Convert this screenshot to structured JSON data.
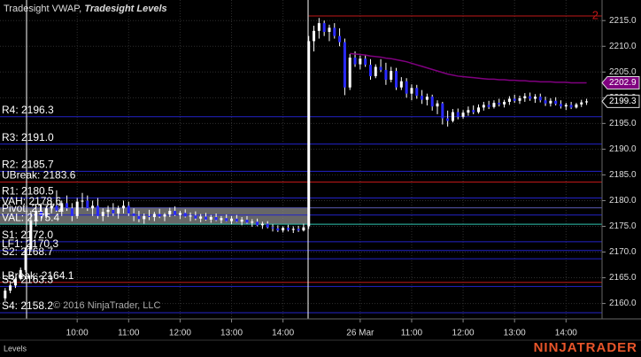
{
  "chart_data": {
    "type": "candlestick",
    "title": "Tradesight VWAP,",
    "subtitle": "Tradesight Levels",
    "panel_label": "Levels",
    "copyright": "© 2016 NinjaTrader, LLC",
    "brand": "NINJATRADER",
    "xlim": [
      -1,
      116
    ],
    "ylim": [
      2157,
      2219
    ],
    "xticks": [
      {
        "value": 14,
        "label": "10:00"
      },
      {
        "value": 24,
        "label": "11:00"
      },
      {
        "value": 34,
        "label": "12:00"
      },
      {
        "value": 44,
        "label": "13:00"
      },
      {
        "value": 54,
        "label": "14:00"
      },
      {
        "value": 69,
        "label": "26 Mar"
      },
      {
        "value": 79,
        "label": "11:00"
      },
      {
        "value": 89,
        "label": "12:00"
      },
      {
        "value": 99,
        "label": "13:00"
      },
      {
        "value": 109,
        "label": "14:00"
      }
    ],
    "yticks": [
      {
        "value": 2160,
        "label": "2160.0"
      },
      {
        "value": 2165,
        "label": "2165.0"
      },
      {
        "value": 2170,
        "label": "2170.0"
      },
      {
        "value": 2175,
        "label": "2175.0"
      },
      {
        "value": 2180,
        "label": "2180.0"
      },
      {
        "value": 2185,
        "label": "2185.0"
      },
      {
        "value": 2190,
        "label": "2190.0"
      },
      {
        "value": 2195,
        "label": "2195.0"
      },
      {
        "value": 2200,
        "label": "2200.0"
      },
      {
        "value": 2205,
        "label": "2205.0"
      },
      {
        "value": 2210,
        "label": "2210.0"
      },
      {
        "value": 2215,
        "label": "2215.0"
      }
    ],
    "grid": true,
    "up_color": "#ffffff",
    "down_color": "#2a2aff",
    "wick_color": "#ffffff",
    "candles": [
      [
        2161,
        2163,
        2160.5,
        2162.5
      ],
      [
        2162.5,
        2164,
        2162,
        2163.5
      ],
      [
        2163.5,
        2165,
        2163,
        2164.8
      ],
      [
        2164.8,
        2167,
        2164.5,
        2166.5
      ],
      [
        2166.5,
        2171,
        2166,
        2170.5
      ],
      [
        2170.5,
        2178,
        2170,
        2176
      ],
      [
        2176,
        2179,
        2175,
        2178
      ],
      [
        2178,
        2179.5,
        2176.5,
        2177
      ],
      [
        2177,
        2179,
        2176.5,
        2178.5
      ],
      [
        2178.5,
        2180,
        2177.5,
        2179
      ],
      [
        2179,
        2182,
        2178.5,
        2178
      ],
      [
        2178,
        2180,
        2177,
        2179.5
      ],
      [
        2179.5,
        2181,
        2178,
        2178.5
      ],
      [
        2178.5,
        2179.5,
        2176,
        2177
      ],
      [
        2177,
        2180.5,
        2176.5,
        2179.8
      ],
      [
        2179.8,
        2181.5,
        2178.5,
        2180
      ],
      [
        2180,
        2181,
        2178,
        2178.5
      ],
      [
        2178.5,
        2180,
        2177,
        2179
      ],
      [
        2179,
        2180.5,
        2176.5,
        2177
      ],
      [
        2177,
        2178.5,
        2176,
        2177.8
      ],
      [
        2177.8,
        2179,
        2176.8,
        2178.2
      ],
      [
        2178.2,
        2179.5,
        2177,
        2177.5
      ],
      [
        2177.5,
        2179,
        2176.5,
        2178.5
      ],
      [
        2178.5,
        2180,
        2177.5,
        2179
      ],
      [
        2179,
        2179.8,
        2177,
        2177.5
      ],
      [
        2177.5,
        2178.5,
        2176,
        2177
      ],
      [
        2177,
        2178,
        2175.8,
        2176.4
      ],
      [
        2176.4,
        2177.5,
        2175.5,
        2177
      ],
      [
        2177,
        2178.2,
        2176.2,
        2176.8
      ],
      [
        2176.8,
        2177.8,
        2176,
        2177.4
      ],
      [
        2177.4,
        2178.4,
        2176.6,
        2176.9
      ],
      [
        2176.9,
        2177.6,
        2176,
        2177.3
      ],
      [
        2177.3,
        2178.6,
        2176.8,
        2178
      ],
      [
        2178,
        2178.9,
        2177,
        2177.2
      ],
      [
        2177.2,
        2178,
        2176.4,
        2177.6
      ],
      [
        2177.6,
        2178.3,
        2176.7,
        2176.9
      ],
      [
        2176.9,
        2177.7,
        2176,
        2177.1
      ],
      [
        2177.1,
        2177.9,
        2176.2,
        2176.5
      ],
      [
        2176.5,
        2177.4,
        2175.8,
        2176.9
      ],
      [
        2176.9,
        2177.6,
        2176.1,
        2176.3
      ],
      [
        2176.3,
        2177.2,
        2175.7,
        2176.8
      ],
      [
        2176.8,
        2177.5,
        2176,
        2176.2
      ],
      [
        2176.2,
        2177,
        2175.6,
        2176.6
      ],
      [
        2176.6,
        2177.3,
        2175.9,
        2176
      ],
      [
        2176,
        2177,
        2175.4,
        2176.5
      ],
      [
        2176.5,
        2177.2,
        2175.8,
        2175.9
      ],
      [
        2175.9,
        2176.8,
        2175.2,
        2176.3
      ],
      [
        2176.3,
        2177,
        2175.5,
        2175.7
      ],
      [
        2175.7,
        2176.4,
        2174.9,
        2175.9
      ],
      [
        2175.9,
        2176.5,
        2175,
        2175.2
      ],
      [
        2175.2,
        2175.9,
        2174.5,
        2175.5
      ],
      [
        2175.5,
        2176,
        2174.6,
        2174.8
      ],
      [
        2174.8,
        2175.4,
        2174,
        2174.6
      ],
      [
        2174.6,
        2175.2,
        2173.9,
        2174.2
      ],
      [
        2174.2,
        2175,
        2173.8,
        2174.7
      ],
      [
        2174.7,
        2175.3,
        2174,
        2174.3
      ],
      [
        2174.3,
        2175,
        2173.7,
        2174.5
      ],
      [
        2174.5,
        2175.1,
        2173.9,
        2174.2
      ],
      [
        2174.2,
        2175.5,
        2174,
        2174.8
      ],
      [
        2175,
        2212,
        2174.5,
        2211
      ],
      [
        2211,
        2214,
        2209,
        2213
      ],
      [
        2213,
        2215.5,
        2211.5,
        2214.5
      ],
      [
        2214.5,
        2215,
        2212,
        2212.8
      ],
      [
        2212.8,
        2214.2,
        2211,
        2213.6
      ],
      [
        2213.6,
        2214.5,
        2211.5,
        2212
      ],
      [
        2212,
        2213.5,
        2210,
        2210.8
      ],
      [
        2210.8,
        2211.5,
        2200.5,
        2202
      ],
      [
        2202,
        2208.5,
        2201.5,
        2207.8
      ],
      [
        2207.8,
        2209,
        2206,
        2206.5
      ],
      [
        2206.5,
        2208.2,
        2205.5,
        2207.6
      ],
      [
        2207.6,
        2208.4,
        2206,
        2206.4
      ],
      [
        2206.4,
        2207.5,
        2203.5,
        2204.2
      ],
      [
        2204.2,
        2206.5,
        2203.8,
        2206
      ],
      [
        2206,
        2207.5,
        2205,
        2205.4
      ],
      [
        2205.4,
        2206.8,
        2202.5,
        2203.5
      ],
      [
        2203.5,
        2206,
        2203,
        2205.2
      ],
      [
        2205.2,
        2205.8,
        2201.5,
        2202
      ],
      [
        2202,
        2204,
        2201.5,
        2203.2
      ],
      [
        2203.2,
        2203.8,
        2200,
        2200.8
      ],
      [
        2200.8,
        2202.6,
        2199.5,
        2201.9
      ],
      [
        2201.9,
        2202.5,
        2199.8,
        2200.4
      ],
      [
        2200.4,
        2201.5,
        2198.8,
        2199.6
      ],
      [
        2199.6,
        2200.8,
        2198.5,
        2200.2
      ],
      [
        2200.2,
        2200.6,
        2197.5,
        2198.3
      ],
      [
        2198.3,
        2199.5,
        2196.8,
        2198.9
      ],
      [
        2198.9,
        2199.2,
        2194.8,
        2196
      ],
      [
        2196,
        2197.5,
        2194.4,
        2195.5
      ],
      [
        2195.5,
        2197.8,
        2195.2,
        2197.2
      ],
      [
        2197.2,
        2197.9,
        2195.8,
        2196.3
      ],
      [
        2196.3,
        2197.6,
        2195.9,
        2197.1
      ],
      [
        2197.1,
        2198.3,
        2196.5,
        2197.6
      ],
      [
        2197.6,
        2198.5,
        2196.8,
        2197.2
      ],
      [
        2197.2,
        2198.7,
        2196.9,
        2198.1
      ],
      [
        2198.1,
        2199.2,
        2197.5,
        2198.6
      ],
      [
        2198.6,
        2199.4,
        2197.8,
        2198.2
      ],
      [
        2198.2,
        2199.5,
        2197.9,
        2199
      ],
      [
        2199,
        2199.8,
        2198.3,
        2198.7
      ],
      [
        2198.7,
        2199.6,
        2198.1,
        2199.2
      ],
      [
        2199.2,
        2200.3,
        2198.6,
        2199.8
      ],
      [
        2199.8,
        2200.6,
        2199,
        2199.4
      ],
      [
        2199.4,
        2200.4,
        2198.8,
        2199.9
      ],
      [
        2199.9,
        2200.9,
        2199.2,
        2200.3
      ],
      [
        2200.3,
        2201,
        2199.4,
        2199.8
      ],
      [
        2199.8,
        2200.7,
        2199,
        2200.2
      ],
      [
        2200.2,
        2200.8,
        2199.1,
        2199.5
      ],
      [
        2199.5,
        2200.2,
        2198.4,
        2198.9
      ],
      [
        2198.9,
        2199.9,
        2198.3,
        2199.4
      ],
      [
        2199.4,
        2200.1,
        2198.5,
        2198.8
      ],
      [
        2198.8,
        2199.5,
        2197.9,
        2198.3
      ],
      [
        2198.3,
        2199,
        2197.6,
        2198.6
      ],
      [
        2198.6,
        2199.2,
        2197.8,
        2198.1
      ],
      [
        2198.1,
        2199,
        2197.9,
        2198.7
      ],
      [
        2198.7,
        2199.6,
        2198.2,
        2199.1
      ],
      [
        2199.1,
        2199.8,
        2198.6,
        2199.3
      ]
    ],
    "vwap": {
      "color": "#800080",
      "values": [
        null,
        null,
        null,
        null,
        null,
        null,
        null,
        null,
        null,
        null,
        null,
        null,
        null,
        null,
        null,
        null,
        null,
        null,
        null,
        null,
        null,
        null,
        null,
        null,
        null,
        null,
        null,
        null,
        null,
        null,
        null,
        null,
        null,
        null,
        null,
        null,
        null,
        null,
        null,
        null,
        null,
        null,
        null,
        null,
        null,
        null,
        null,
        null,
        null,
        null,
        null,
        null,
        null,
        null,
        null,
        null,
        null,
        null,
        null,
        null,
        null,
        null,
        null,
        null,
        null,
        null,
        null,
        2208.6,
        2208.5,
        2208.4,
        2208.3,
        2208.1,
        2208,
        2207.9,
        2207.7,
        2207.6,
        2207.4,
        2207.2,
        2207,
        2206.7,
        2206.4,
        2206.1,
        2205.8,
        2205.5,
        2205.2,
        2204.9,
        2204.6,
        2204.4,
        2204.2,
        2204.1,
        2204,
        2203.9,
        2203.8,
        2203.7,
        2203.6,
        2203.6,
        2203.5,
        2203.5,
        2203.4,
        2203.4,
        2203.3,
        2203.3,
        2203.2,
        2203.2,
        2203.1,
        2203.1,
        2203.1,
        2203,
        2203,
        2203,
        2202.9,
        2202.9,
        2202.9,
        2202.9
      ]
    },
    "value_area": {
      "high": 2178.6,
      "low": 2175.4,
      "color": "#8a8a8a"
    },
    "levels": [
      {
        "label": "2",
        "value": 2215.9,
        "color": "#c01818",
        "from": 59,
        "label_side": "right"
      },
      {
        "label": "R4: 2196.3",
        "value": 2196.3,
        "color": "#2323c8"
      },
      {
        "label": "R3: 2191.0",
        "value": 2191.0,
        "color": "#2323c8"
      },
      {
        "label": "R2: 2185.7",
        "value": 2185.7,
        "color": "#2323c8"
      },
      {
        "label": "UBreak: 2183.6",
        "value": 2183.6,
        "color": "#c01818"
      },
      {
        "label": "R1: 2180.5",
        "value": 2180.5,
        "color": "#2323c8"
      },
      {
        "label": "VAH: 2178.6",
        "value": 2178.6,
        "color": "#5a5ab0"
      },
      {
        "label": "Pivot: 2177.2",
        "value": 2177.2,
        "color": "#2323c8"
      },
      {
        "label": "VAL: 2175.4",
        "value": 2175.4,
        "color": "#2fc4b0"
      },
      {
        "label": "S1: 2172.0",
        "value": 2172.0,
        "color": "#2323c8"
      },
      {
        "label": "LF1: 2170.3",
        "value": 2170.3,
        "color": "#2323c8"
      },
      {
        "label": "S2: 2168.7",
        "value": 2168.7,
        "color": "#2323c8"
      },
      {
        "label": "LBreak: 2164.1",
        "value": 2164.1,
        "color": "#c01818"
      },
      {
        "label": "S3: 2163.3",
        "value": 2163.3,
        "color": "#2323c8"
      },
      {
        "label": "S4: 2158.2",
        "value": 2158.2,
        "color": "#2323c8"
      }
    ],
    "price_markers": [
      {
        "value": 2202.9,
        "color": "#800080"
      },
      {
        "value": 2199.3,
        "color": "#000000"
      }
    ]
  }
}
